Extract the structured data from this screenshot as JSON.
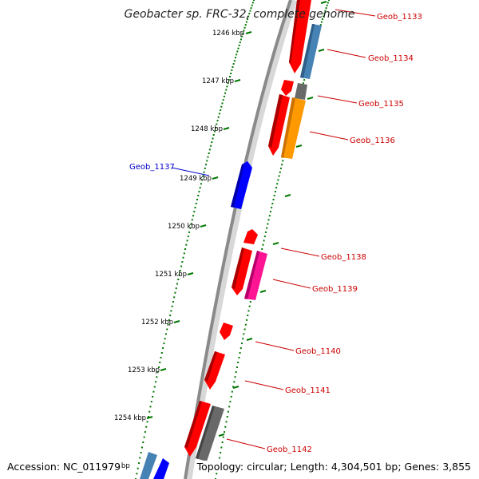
{
  "title": "Geobacter sp. FRC-32, complete genome",
  "footer": {
    "accession": "Accession: NC_011979",
    "topology": "Topology: circular; Length: 4,304,501 bp; Genes: 3,855"
  },
  "kbp_ticks": [
    "1246 kbp",
    "1247 kbp",
    "1248 kbp",
    "1249 kbp",
    "1250 kbp",
    "1251 kbp",
    "1252 kbp",
    "1253 kbp",
    "1254 kbp",
    "kbp"
  ],
  "gene_labels": [
    "Geob_1133",
    "Geob_1134",
    "Geob_1135",
    "Geob_1136",
    "Geob_1137",
    "Geob_1138",
    "Geob_1139",
    "Geob_1140",
    "Geob_1141",
    "Geob_1142"
  ],
  "colors": {
    "red_gene": "#ff0000",
    "blue_gene": "#0000ff",
    "steelblue_gene": "#4682b4",
    "gray_gene": "#696969",
    "orange_gene": "#ff9900",
    "pink_gene": "#ff1493",
    "backbone": "#888888",
    "tick_green": "#007700",
    "label_red": "#cc0000",
    "label_blue": "#0000cc"
  }
}
